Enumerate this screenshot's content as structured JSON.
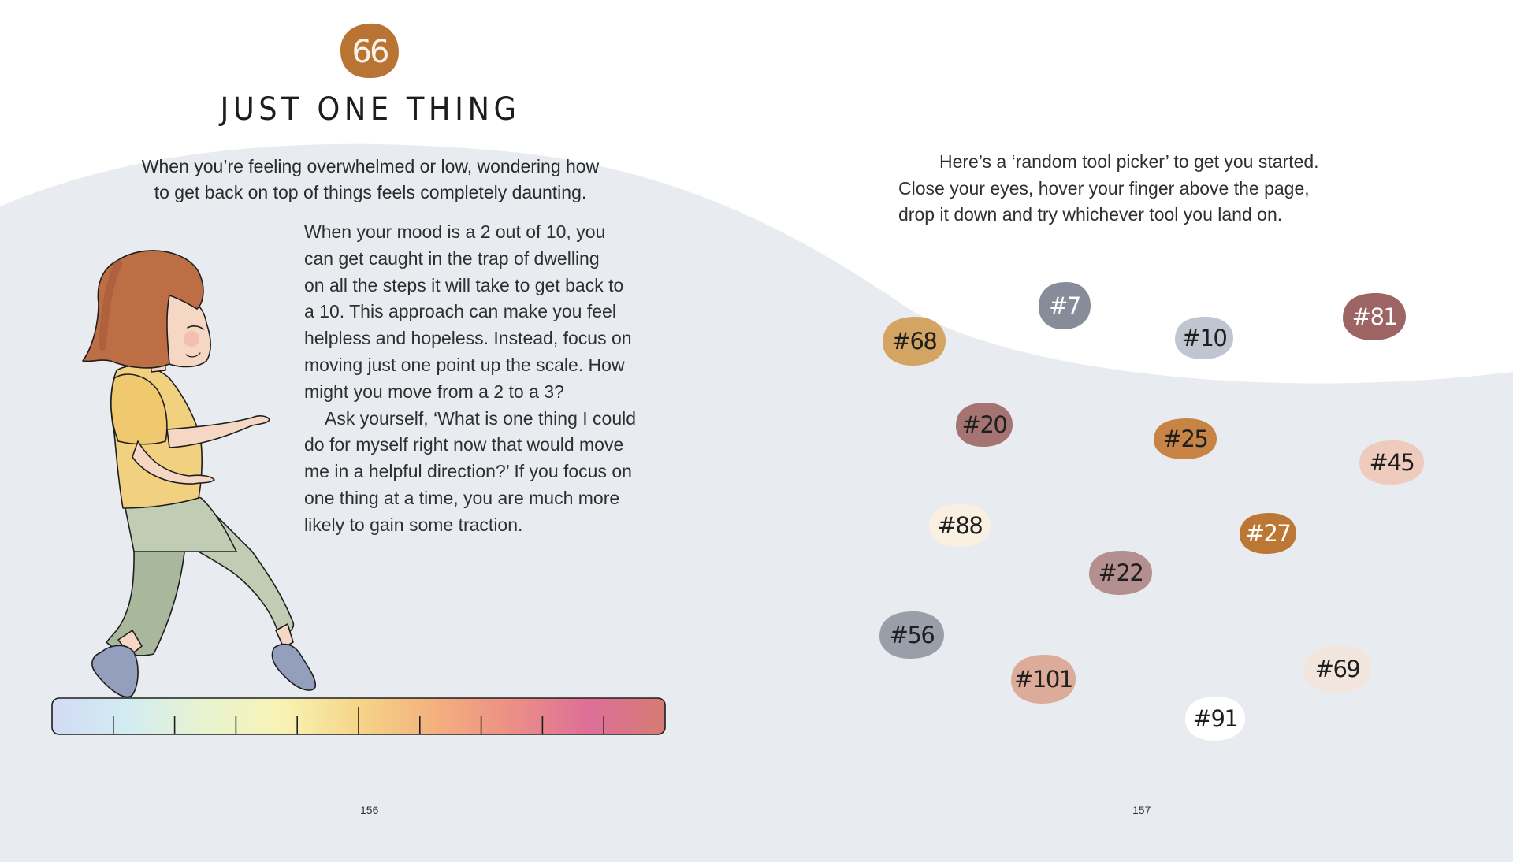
{
  "left_page": {
    "activity_number": "66",
    "title": "JUST ONE THING",
    "lead_paragraph": [
      "When you’re feeling overwhelmed or low, wondering how",
      "to get back on top of things feels completely daunting."
    ],
    "body_paragraph_1": [
      "When your mood is a 2 out of 10, you",
      "can get caught in the trap of dwelling",
      "on all the steps it will take to get back to",
      "a 10. This approach can make you feel",
      "helpless and hopeless. Instead, focus on",
      "moving just one point up the scale. How",
      "might you move from a 2 to a 3?"
    ],
    "body_paragraph_2": [
      "Ask yourself, ‘What is one thing I could",
      "do for myself right now that would move",
      "me in a helpful direction?’ If you focus on",
      "one thing at a time, you are much more",
      "likely to gain some traction."
    ],
    "page_number": "156"
  },
  "right_page": {
    "intro": [
      "Here’s a ‘random tool picker’ to get you started.",
      "Close your eyes, hover your finger above the page,",
      "drop it down and try whichever tool you land on."
    ],
    "tools": [
      {
        "label": "#7",
        "color": "#868d98",
        "text_color": "#ffffff"
      },
      {
        "label": "#68",
        "color": "#d4a462",
        "text_color": "#1f1f1f"
      },
      {
        "label": "#10",
        "color": "#bfc6d2",
        "text_color": "#1f1f1f"
      },
      {
        "label": "#81",
        "color": "#9c6463",
        "text_color": "#ffffff"
      },
      {
        "label": "#20",
        "color": "#a57472",
        "text_color": "#1f1f1f"
      },
      {
        "label": "#25",
        "color": "#c78444",
        "text_color": "#1f1f1f"
      },
      {
        "label": "#45",
        "color": "#efcbbd",
        "text_color": "#1f1f1f"
      },
      {
        "label": "#88",
        "color": "#f9f0e2",
        "text_color": "#1f1f1f"
      },
      {
        "label": "#27",
        "color": "#bd7734",
        "text_color": "#ffffff"
      },
      {
        "label": "#22",
        "color": "#b48f8f",
        "text_color": "#1f1f1f"
      },
      {
        "label": "#56",
        "color": "#999ea9",
        "text_color": "#1f1f1f"
      },
      {
        "label": "#101",
        "color": "#dcab9a",
        "text_color": "#1f1f1f"
      },
      {
        "label": "#69",
        "color": "#f2e5de",
        "text_color": "#1f1f1f"
      },
      {
        "label": "#91",
        "color": "#ffffff",
        "text_color": "#1f1f1f"
      }
    ],
    "page_number": "157"
  },
  "colors": {
    "background_wave": "#e8ebf0",
    "page": "#ffffff",
    "badge": "#b97434",
    "hair": "#be6e44",
    "shirt": "#f1d07f",
    "pants": "#c0cdb4",
    "shoes": "#949fbe",
    "skin": "#f5d7c4"
  },
  "mood_scale": {
    "steps": 10,
    "gradient": [
      "#d2dbf3",
      "#d3ecf2",
      "#e8f3cf",
      "#f8f3b4",
      "#f5d588",
      "#f4b07e",
      "#ec8f86",
      "#dd6f98",
      "#d67b74"
    ]
  }
}
